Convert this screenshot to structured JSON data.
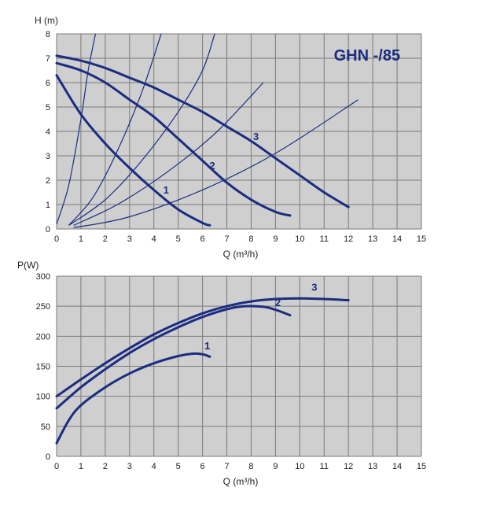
{
  "colors": {
    "curve": "#1a2d80",
    "plot_bg": "#cfcfcf",
    "grid": "#7a7a7a"
  },
  "chart_data": [
    {
      "type": "line",
      "title": "GHN -/85",
      "xlabel": "Q (m³/h)",
      "ylabel": "H (m)",
      "xlim": [
        0,
        15
      ],
      "ylim": [
        0,
        8
      ],
      "xticks": [
        "0",
        "1",
        "2",
        "3",
        "4",
        "5",
        "6",
        "7",
        "8",
        "9",
        "10",
        "11",
        "12",
        "13",
        "14",
        "15"
      ],
      "yticks": [
        "0",
        "1",
        "2",
        "3",
        "4",
        "5",
        "6",
        "7",
        "8"
      ],
      "grid": true,
      "series": [
        {
          "name": "1",
          "x": [
            0,
            1,
            2,
            3,
            4,
            5,
            6,
            6.3
          ],
          "y": [
            6.3,
            4.7,
            3.5,
            2.5,
            1.6,
            0.8,
            0.25,
            0.15
          ]
        },
        {
          "name": "2",
          "x": [
            0,
            1,
            2,
            3,
            4,
            5,
            6,
            7,
            8,
            9,
            9.6
          ],
          "y": [
            6.8,
            6.5,
            6.0,
            5.3,
            4.6,
            3.7,
            2.8,
            1.9,
            1.2,
            0.7,
            0.55
          ]
        },
        {
          "name": "3",
          "x": [
            0,
            1,
            2,
            3,
            4,
            5,
            6,
            7,
            8,
            9,
            10,
            11,
            12
          ],
          "y": [
            7.1,
            6.9,
            6.6,
            6.2,
            5.8,
            5.3,
            4.8,
            4.2,
            3.6,
            2.9,
            2.2,
            1.5,
            0.9
          ]
        }
      ],
      "system_curves": [
        {
          "x": [
            0,
            0.5,
            1.0,
            1.3,
            1.6
          ],
          "y": [
            0.2,
            1.8,
            4.5,
            6.5,
            8.0
          ]
        },
        {
          "x": [
            0.5,
            1.5,
            2.5,
            3.5,
            4.3
          ],
          "y": [
            0.15,
            1.3,
            3.2,
            5.6,
            8.0
          ]
        },
        {
          "x": [
            0.5,
            2,
            3.5,
            5,
            6,
            6.5
          ],
          "y": [
            0.15,
            1.2,
            2.8,
            4.8,
            6.5,
            8.0
          ]
        },
        {
          "x": [
            0.7,
            2.5,
            4.5,
            6.5,
            8.5
          ],
          "y": [
            0.15,
            1.0,
            2.3,
            3.9,
            6.0
          ]
        },
        {
          "x": [
            0.7,
            3,
            6,
            9,
            12.4
          ],
          "y": [
            0.05,
            0.5,
            1.6,
            3.1,
            5.3
          ]
        }
      ]
    },
    {
      "type": "line",
      "title": "",
      "xlabel": "Q (m³/h)",
      "ylabel": "P(W)",
      "xlim": [
        0,
        15
      ],
      "ylim": [
        0,
        300
      ],
      "xticks": [
        "0",
        "1",
        "2",
        "3",
        "4",
        "5",
        "6",
        "7",
        "8",
        "9",
        "10",
        "11",
        "12",
        "13",
        "14",
        "15"
      ],
      "yticks": [
        "0",
        "50",
        "100",
        "150",
        "200",
        "250",
        "300"
      ],
      "grid": true,
      "series": [
        {
          "name": "1",
          "x": [
            0,
            0.5,
            1,
            2,
            3,
            4,
            5,
            5.6,
            6,
            6.3
          ],
          "y": [
            22,
            60,
            85,
            115,
            138,
            155,
            167,
            171,
            170,
            166
          ]
        },
        {
          "name": "2",
          "x": [
            0,
            1,
            2,
            3,
            4,
            5,
            6,
            7,
            7.7,
            8.5,
            9,
            9.6
          ],
          "y": [
            80,
            115,
            145,
            172,
            195,
            215,
            232,
            245,
            250,
            249,
            244,
            235
          ]
        },
        {
          "name": "3",
          "x": [
            0,
            1,
            2,
            3,
            4,
            5,
            6,
            7,
            8,
            9,
            10,
            11,
            12
          ],
          "y": [
            100,
            128,
            155,
            180,
            203,
            222,
            238,
            250,
            258,
            262,
            263,
            262,
            260
          ]
        }
      ]
    }
  ]
}
